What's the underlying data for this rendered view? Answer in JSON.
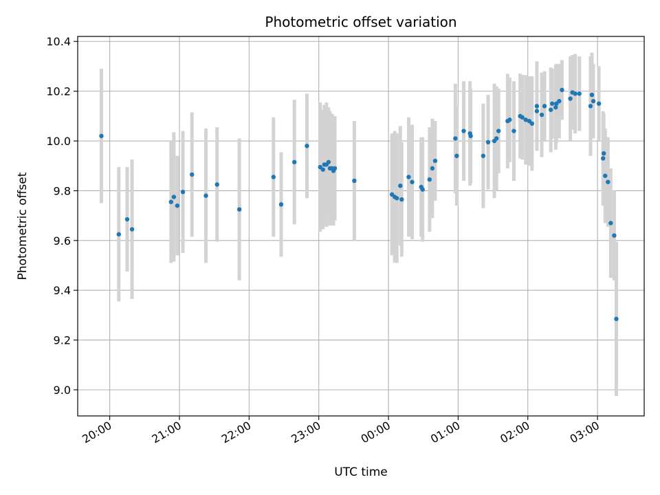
{
  "chart_data": {
    "type": "scatter",
    "title": "Photometric offset variation",
    "xlabel": "UTC time",
    "ylabel": "Photometric offset",
    "x_tick_labels": [
      "20:00",
      "21:00",
      "22:00",
      "23:00",
      "00:00",
      "01:00",
      "02:00",
      "03:00"
    ],
    "y_tick_labels": [
      "9.0",
      "9.2",
      "9.4",
      "9.6",
      "9.8",
      "10.0",
      "10.2",
      "10.4"
    ],
    "xlim_hours": [
      19.54,
      27.67
    ],
    "ylim": [
      8.895,
      10.42
    ],
    "grid": true,
    "marker_color": "#1f77b4",
    "errorbar_color": "#d3d3d3",
    "series": [
      {
        "x_hours": [
          19.88,
          20.13,
          20.25,
          20.32,
          20.88,
          20.92,
          20.97,
          21.05,
          21.18,
          21.38,
          21.54,
          21.86,
          22.35,
          22.46,
          22.65,
          22.83,
          23.02,
          23.06,
          23.08,
          23.11,
          23.14,
          23.16,
          23.19,
          23.21,
          23.23,
          23.51,
          24.05,
          24.09,
          24.12,
          24.17,
          24.19,
          24.29,
          24.34,
          24.47,
          24.49,
          24.59,
          24.63,
          24.67,
          24.96,
          24.98,
          25.08,
          25.17,
          25.18,
          25.36,
          25.43,
          25.52,
          25.55,
          25.58,
          25.71,
          25.74,
          25.8,
          25.89,
          25.92,
          25.97,
          26.02,
          26.06,
          26.13,
          26.13,
          26.2,
          26.24,
          26.33,
          26.35,
          26.4,
          26.41,
          26.45,
          26.49,
          26.61,
          26.64,
          26.68,
          26.74,
          26.9,
          26.92,
          26.94,
          27.02,
          27.08,
          27.09,
          27.11,
          27.15,
          27.19,
          27.24,
          27.27
        ],
        "y": [
          10.02,
          9.625,
          9.685,
          9.645,
          9.755,
          9.775,
          9.74,
          9.795,
          9.865,
          9.78,
          9.825,
          9.725,
          9.855,
          9.745,
          9.915,
          9.98,
          9.895,
          9.885,
          9.905,
          9.905,
          9.915,
          9.89,
          9.89,
          9.88,
          9.89,
          9.84,
          9.785,
          9.775,
          9.77,
          9.82,
          9.765,
          9.855,
          9.835,
          9.815,
          9.805,
          9.845,
          9.89,
          9.92,
          10.01,
          9.94,
          10.04,
          10.03,
          10.02,
          9.94,
          9.995,
          10.0,
          10.01,
          10.04,
          10.08,
          10.085,
          10.04,
          10.1,
          10.095,
          10.085,
          10.08,
          10.07,
          10.12,
          10.14,
          10.105,
          10.14,
          10.125,
          10.15,
          10.135,
          10.15,
          10.16,
          10.205,
          10.17,
          10.195,
          10.19,
          10.19,
          10.14,
          10.185,
          10.16,
          10.15,
          9.93,
          9.95,
          9.86,
          9.835,
          9.67,
          9.62,
          9.285
        ],
        "err": [
          0.27,
          0.27,
          0.21,
          0.28,
          0.245,
          0.26,
          0.2,
          0.245,
          0.25,
          0.27,
          0.23,
          0.285,
          0.24,
          0.21,
          0.25,
          0.21,
          0.26,
          0.24,
          0.24,
          0.25,
          0.22,
          0.23,
          0.22,
          0.22,
          0.21,
          0.24,
          0.245,
          0.265,
          0.26,
          0.24,
          0.23,
          0.24,
          0.23,
          0.2,
          0.21,
          0.21,
          0.2,
          0.16,
          0.22,
          0.2,
          0.2,
          0.21,
          0.19,
          0.21,
          0.19,
          0.23,
          0.21,
          0.17,
          0.19,
          0.17,
          0.2,
          0.17,
          0.17,
          0.18,
          0.18,
          0.19,
          0.14,
          0.18,
          0.17,
          0.14,
          0.17,
          0.14,
          0.17,
          0.16,
          0.15,
          0.12,
          0.17,
          0.15,
          0.16,
          0.15,
          0.2,
          0.17,
          0.15,
          0.15,
          0.19,
          0.16,
          0.19,
          0.18,
          0.22,
          0.18,
          0.31
        ]
      }
    ]
  }
}
